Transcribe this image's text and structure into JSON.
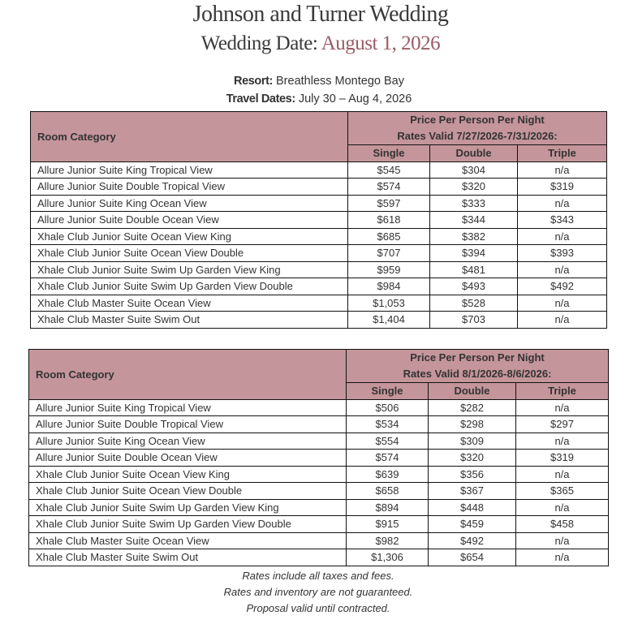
{
  "title": "Johnson and Turner Wedding",
  "wedding_date_label": "Wedding Date:",
  "wedding_date": "August 1, 2026",
  "resort_label": "Resort:",
  "resort": "Breathless Montego Bay",
  "travel_label": "Travel Dates:",
  "travel_dates": "July 30 – Aug 4, 2026",
  "tables": [
    {
      "category_header": "Room Category",
      "price_header": "Price Per Person Per Night",
      "valid_header": "Rates Valid 7/27/2026-7/31/2026:",
      "columns": [
        "Single",
        "Double",
        "Triple"
      ],
      "rows": [
        [
          "Allure Junior Suite King Tropical View",
          "$545",
          "$304",
          "n/a"
        ],
        [
          "Allure Junior Suite Double Tropical View",
          "$574",
          "$320",
          "$319"
        ],
        [
          "Allure Junior Suite King Ocean View",
          "$597",
          "$333",
          "n/a"
        ],
        [
          "Allure Junior Suite Double Ocean View",
          "$618",
          "$344",
          "$343"
        ],
        [
          "Xhale Club Junior Suite Ocean View King",
          "$685",
          "$382",
          "n/a"
        ],
        [
          "Xhale Club Junior Suite Ocean View Double",
          "$707",
          "$394",
          "$393"
        ],
        [
          "Xhale Club Junior Suite Swim Up Garden View King",
          "$959",
          "$481",
          "n/a"
        ],
        [
          "Xhale Club Junior Suite Swim Up Garden View Double",
          "$984",
          "$493",
          "$492"
        ],
        [
          "Xhale Club Master Suite Ocean View",
          "$1,053",
          "$528",
          "n/a"
        ],
        [
          "Xhale Club Master Suite Swim Out",
          "$1,404",
          "$703",
          "n/a"
        ]
      ]
    },
    {
      "category_header": "Room Category",
      "price_header": "Price Per Person Per Night",
      "valid_header": "Rates Valid 8/1/2026-8/6/2026:",
      "columns": [
        "Single",
        "Double",
        "Triple"
      ],
      "rows": [
        [
          "Allure Junior Suite King Tropical View",
          "$506",
          "$282",
          "n/a"
        ],
        [
          "Allure Junior Suite Double Tropical View",
          "$534",
          "$298",
          "$297"
        ],
        [
          "Allure Junior Suite King Ocean View",
          "$554",
          "$309",
          "n/a"
        ],
        [
          "Allure Junior Suite Double Ocean View",
          "$574",
          "$320",
          "$319"
        ],
        [
          "Xhale Club Junior Suite Ocean View King",
          "$639",
          "$356",
          "n/a"
        ],
        [
          "Xhale Club Junior Suite Ocean View Double",
          "$658",
          "$367",
          "$365"
        ],
        [
          "Xhale Club Junior Suite Swim Up Garden View King",
          "$894",
          "$448",
          "n/a"
        ],
        [
          "Xhale Club Junior Suite Swim Up Garden View Double",
          "$915",
          "$459",
          "$458"
        ],
        [
          "Xhale Club Master Suite Ocean View",
          "$982",
          "$492",
          "n/a"
        ],
        [
          "Xhale Club Master Suite Swim Out",
          "$1,306",
          "$654",
          "n/a"
        ]
      ]
    }
  ],
  "footer": [
    "Rates include all taxes and fees.",
    "Rates and inventory are not guaranteed.",
    "Proposal valid until contracted."
  ],
  "colors": {
    "header_fill": "#c4959a",
    "date_accent": "#9b5a66"
  }
}
